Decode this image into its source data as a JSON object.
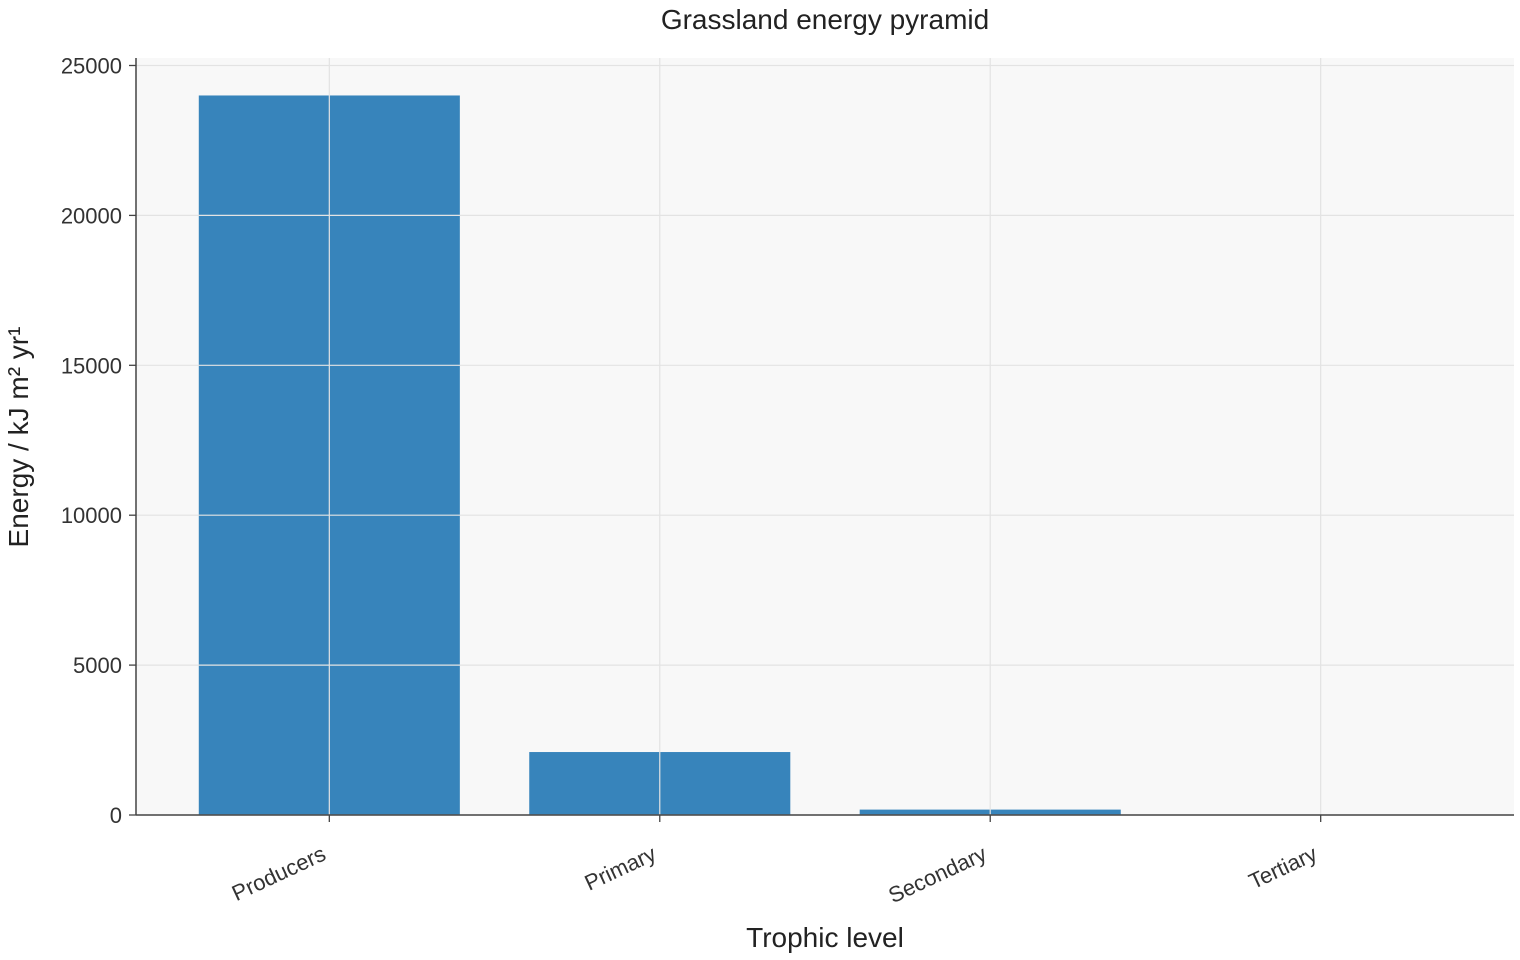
{
  "chart_data": {
    "type": "bar",
    "title": "Grassland energy pyramid",
    "xlabel": "Trophic level",
    "ylabel": "Energy / kJ m² yr¹",
    "categories": [
      "Producers",
      "Primary",
      "Secondary",
      "Tertiary"
    ],
    "values": [
      24000,
      2100,
      180,
      15
    ],
    "ylim": [
      0,
      25000
    ],
    "yticks": [
      0,
      5000,
      10000,
      15000,
      20000,
      25000
    ],
    "grid": true,
    "legend": "none",
    "colors": {
      "bar": "#3784bb",
      "plot_background": "#f8f8f8",
      "grid": "#e3e3e3",
      "axis": "#444444"
    }
  }
}
